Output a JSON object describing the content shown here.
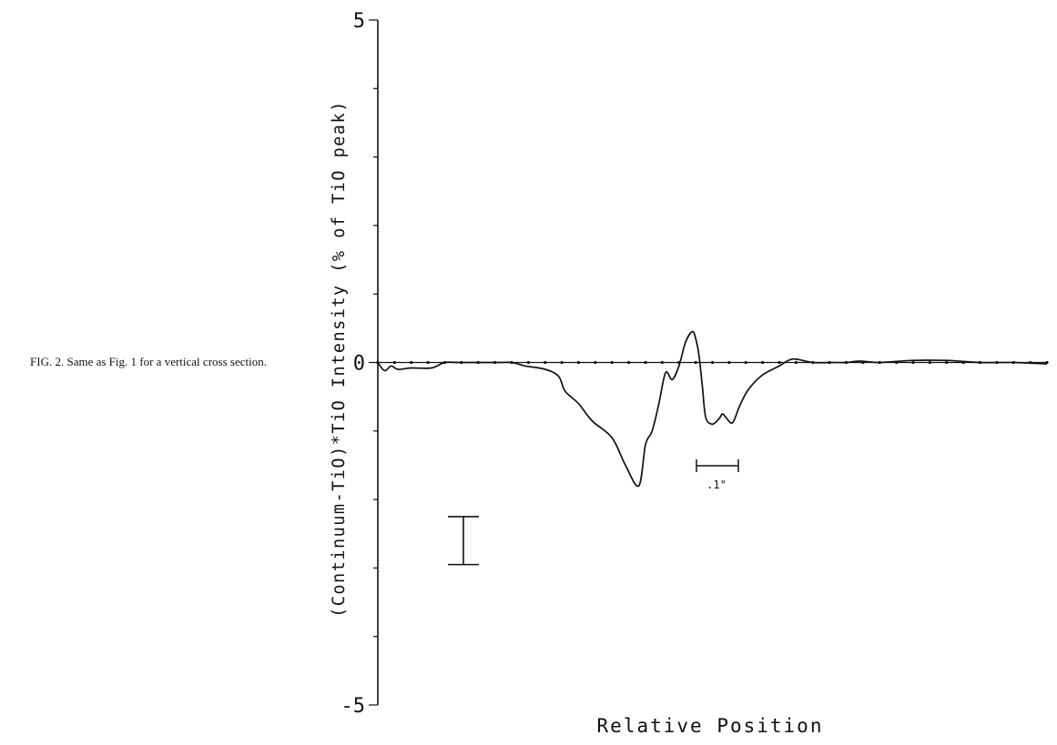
{
  "figure": {
    "caption": "FIG. 2. Same as Fig. 1 for a vertical cross section."
  },
  "chart_data": {
    "type": "line",
    "title": "",
    "xlabel": "Relative Position",
    "ylabel": "(Continuum-TiO)*TiO Intensity (% of TiO peak)",
    "ylim": [
      -5,
      5
    ],
    "y_ticks": [
      "5",
      "0",
      "-5"
    ],
    "grid": false,
    "legend": "none",
    "zero_line_markers": true,
    "scale_bar_label": ".1\"",
    "error_bar_half_height": 0.35,
    "series": [
      {
        "x": [
          0.0,
          0.01,
          0.02,
          0.03,
          0.05,
          0.08,
          0.1,
          0.12,
          0.15,
          0.18,
          0.2,
          0.22,
          0.25,
          0.27,
          0.28,
          0.3,
          0.32,
          0.35,
          0.37,
          0.39,
          0.4,
          0.41,
          0.42,
          0.43,
          0.44,
          0.45,
          0.46,
          0.47,
          0.475,
          0.48,
          0.485,
          0.49,
          0.5,
          0.51,
          0.515,
          0.52,
          0.53,
          0.54,
          0.55,
          0.56,
          0.57,
          0.58,
          0.6,
          0.62,
          0.65,
          0.68,
          0.7,
          0.72,
          0.75,
          0.8,
          0.85,
          0.9,
          0.95,
          1.0
        ],
        "y": [
          0.0,
          -0.12,
          -0.05,
          -0.1,
          -0.08,
          -0.08,
          0.0,
          0.0,
          0.0,
          0.0,
          0.0,
          -0.05,
          -0.1,
          -0.2,
          -0.42,
          -0.6,
          -0.85,
          -1.1,
          -1.5,
          -1.8,
          -1.2,
          -1.0,
          -0.6,
          -0.15,
          -0.25,
          -0.05,
          0.3,
          0.45,
          0.35,
          0.1,
          -0.35,
          -0.8,
          -0.9,
          -0.82,
          -0.75,
          -0.8,
          -0.88,
          -0.65,
          -0.45,
          -0.32,
          -0.22,
          -0.15,
          -0.05,
          0.05,
          0.0,
          0.0,
          0.0,
          0.02,
          0.0,
          0.03,
          0.03,
          0.0,
          0.0,
          -0.02
        ]
      }
    ]
  }
}
